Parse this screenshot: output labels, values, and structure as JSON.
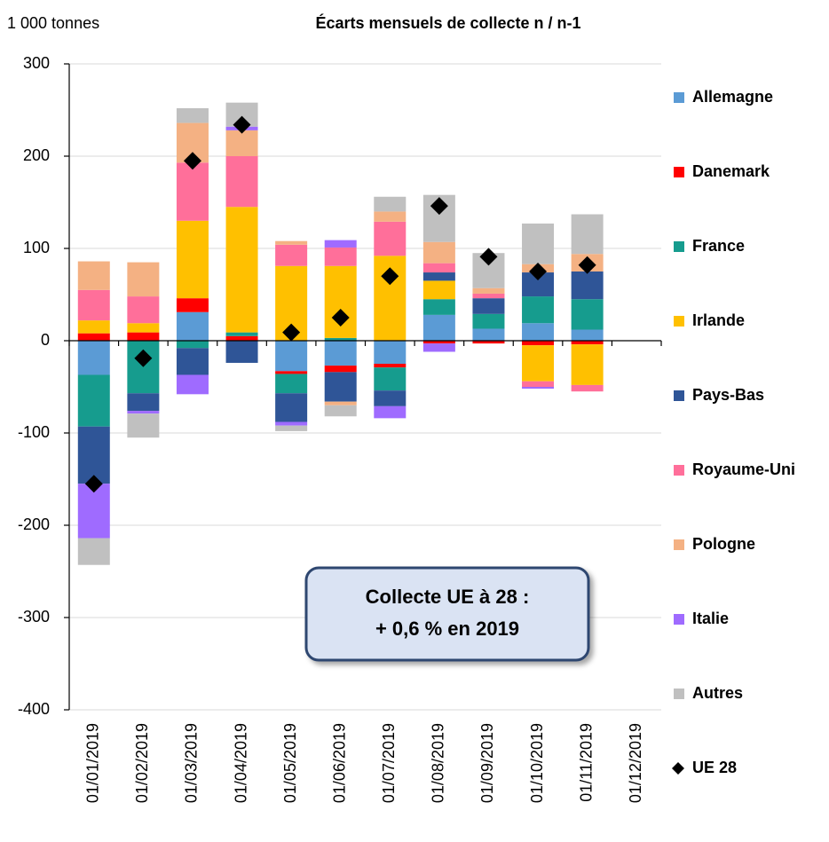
{
  "chart_data": {
    "type": "bar",
    "stacked": true,
    "title": "Écarts mensuels de collecte n / n-1",
    "y_label": "1 000 tonnes",
    "categories": [
      "01/01/2019",
      "01/02/2019",
      "01/03/2019",
      "01/04/2019",
      "01/05/2019",
      "01/06/2019",
      "01/07/2019",
      "01/08/2019",
      "01/09/2019",
      "01/10/2019",
      "01/11/2019",
      "01/12/2019"
    ],
    "series": [
      {
        "name": "Allemagne",
        "color": "#5b9bd5",
        "values": [
          -37,
          0,
          31,
          0,
          -33,
          -27,
          -25,
          28,
          13,
          19,
          12,
          null
        ]
      },
      {
        "name": "Danemark",
        "color": "#ff0000",
        "values": [
          8,
          9,
          15,
          5,
          -3,
          -7,
          -4,
          -3,
          -3,
          -5,
          -4,
          null
        ]
      },
      {
        "name": "France",
        "color": "#169c8e",
        "values": [
          -56,
          -57,
          -8,
          4,
          -21,
          3,
          -25,
          17,
          16,
          29,
          33,
          null
        ]
      },
      {
        "name": "Irlande",
        "color": "#ffc000",
        "values": [
          14,
          10,
          84,
          136,
          81,
          78,
          92,
          20,
          0,
          -39,
          -44,
          null
        ]
      },
      {
        "name": "Pays-Bas",
        "color": "#2f5597",
        "values": [
          -62,
          -19,
          -29,
          -24,
          -31,
          -32,
          -17,
          9,
          17,
          26,
          30,
          null
        ]
      },
      {
        "name": "Royaume-Uni",
        "color": "#ff6f9a",
        "values": [
          33,
          29,
          63,
          55,
          23,
          20,
          37,
          10,
          5,
          -6,
          -7,
          null
        ]
      },
      {
        "name": "Pologne",
        "color": "#f4b183",
        "values": [
          31,
          37,
          43,
          28,
          4,
          -4,
          11,
          23,
          6,
          9,
          19,
          null
        ]
      },
      {
        "name": "Italie",
        "color": "#9f6bff",
        "values": [
          -59,
          -3,
          -21,
          4,
          -4,
          8,
          -13,
          -9,
          0,
          -2,
          0,
          null
        ]
      },
      {
        "name": "Autres",
        "color": "#c0c0c0",
        "values": [
          -29,
          -26,
          16,
          26,
          -6,
          -12,
          16,
          51,
          38,
          44,
          43,
          null
        ]
      },
      {
        "name": "UE 28",
        "color": "#000000",
        "type": "scatter",
        "marker": "diamond",
        "values": [
          -155,
          -19,
          195,
          234,
          9,
          25,
          70,
          146,
          91,
          75,
          82,
          null
        ]
      }
    ],
    "ylim": [
      -400,
      300
    ],
    "yticks": [
      -400,
      -300,
      -200,
      -100,
      0,
      100,
      200,
      300
    ],
    "grid": true,
    "legend": "right",
    "annotations": [
      "Collecte UE à 28 :",
      "+ 0,6 % en 2019"
    ]
  }
}
